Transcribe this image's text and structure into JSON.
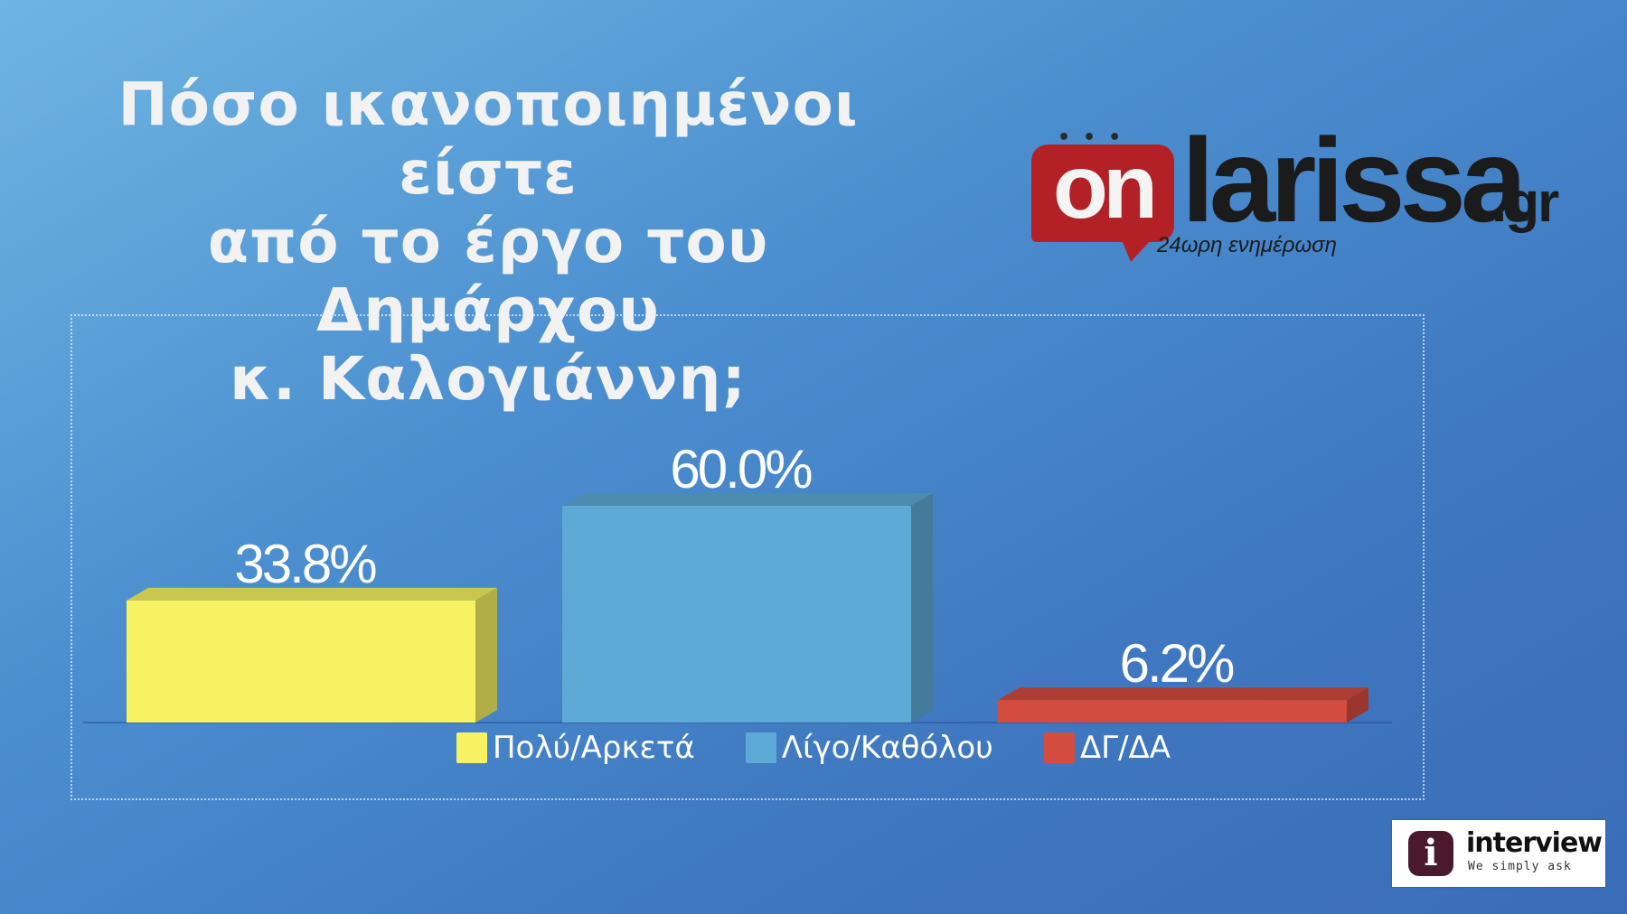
{
  "title": {
    "line1": "Πόσο ικανοποιημένοι είστε",
    "line2": "από το έργο του Δημάρχου",
    "line3": "κ. Καλογιάννη;"
  },
  "logo": {
    "dots": "•••",
    "part_on": "on",
    "part_larissa": "larissa",
    "part_gr": ".gr",
    "tagline": "24ωρη ενημέρωση"
  },
  "interview_logo": {
    "icon": "i",
    "name": "interview",
    "slogan": "We simply ask"
  },
  "chart_data": {
    "type": "bar",
    "categories": [
      "Πολύ/Αρκετά",
      "Λίγο/Καθόλου",
      "ΔΓ/ΔΑ"
    ],
    "values": [
      33.8,
      60.0,
      6.2
    ],
    "data_labels": [
      "33.8%",
      "60.0%",
      "6.2%"
    ],
    "colors": [
      "#f7f262",
      "#5eaad6",
      "#d44b3f"
    ],
    "title": "",
    "xlabel": "",
    "ylabel": "",
    "ylim": [
      0,
      100
    ],
    "grid": false,
    "legend_position": "bottom",
    "style": "3d-bars"
  }
}
